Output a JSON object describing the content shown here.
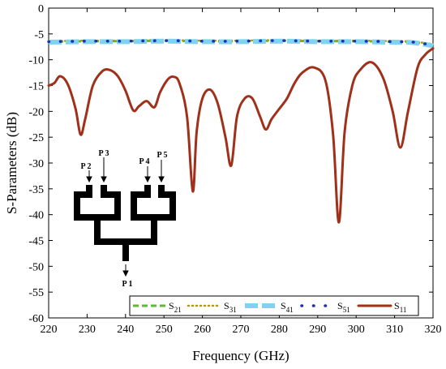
{
  "chart_data": {
    "type": "line",
    "xlabel": "Frequency (GHz)",
    "ylabel": "S-Parameters (dB)",
    "xlim": [
      220,
      320
    ],
    "ylim": [
      -60,
      0
    ],
    "x_ticks": [
      220,
      230,
      240,
      250,
      260,
      270,
      280,
      290,
      300,
      310,
      320
    ],
    "y_ticks": [
      0,
      -5,
      -10,
      -15,
      -20,
      -25,
      -30,
      -35,
      -40,
      -45,
      -50,
      -55,
      -60
    ],
    "grid": false,
    "legend_position": "bottom",
    "legend": [
      {
        "base": "S",
        "sub": "21",
        "color": "#5fb83a",
        "style": "dash"
      },
      {
        "base": "S",
        "sub": "31",
        "color": "#b59a00",
        "style": "dot"
      },
      {
        "base": "S",
        "sub": "41",
        "color": "#7fd3f0",
        "style": "thick-dash"
      },
      {
        "base": "S",
        "sub": "51",
        "color": "#1f2fb0",
        "style": "sparse-dot"
      },
      {
        "base": "S",
        "sub": "11",
        "color": "#a0301a",
        "style": "solid"
      }
    ],
    "series": [
      {
        "name": "S21",
        "color": "#5fb83a",
        "style": "dash",
        "x": [
          220,
          230,
          240,
          250,
          260,
          270,
          280,
          290,
          300,
          310,
          315,
          320
        ],
        "y": [
          -6.5,
          -6.4,
          -6.4,
          -6.3,
          -6.4,
          -6.4,
          -6.3,
          -6.4,
          -6.4,
          -6.5,
          -6.6,
          -7.2
        ]
      },
      {
        "name": "S31",
        "color": "#b59a00",
        "style": "dot",
        "x": [
          220,
          230,
          240,
          250,
          260,
          270,
          280,
          290,
          300,
          310,
          315,
          320
        ],
        "y": [
          -6.4,
          -6.3,
          -6.3,
          -6.2,
          -6.3,
          -6.3,
          -6.2,
          -6.3,
          -6.3,
          -6.4,
          -6.5,
          -7.0
        ]
      },
      {
        "name": "S41",
        "color": "#7fd3f0",
        "style": "thick-dash",
        "x": [
          220,
          230,
          240,
          250,
          260,
          270,
          280,
          290,
          300,
          310,
          315,
          320
        ],
        "y": [
          -6.6,
          -6.5,
          -6.5,
          -6.4,
          -6.5,
          -6.5,
          -6.4,
          -6.5,
          -6.5,
          -6.6,
          -6.7,
          -7.3
        ]
      },
      {
        "name": "S51",
        "color": "#1f2fb0",
        "style": "sparse-dot",
        "x": [
          220,
          230,
          240,
          250,
          260,
          270,
          280,
          290,
          300,
          310,
          315,
          320
        ],
        "y": [
          -6.5,
          -6.4,
          -6.4,
          -6.3,
          -6.4,
          -6.4,
          -6.3,
          -6.4,
          -6.4,
          -6.5,
          -6.6,
          -7.2
        ]
      },
      {
        "name": "S11",
        "color": "#a0301a",
        "style": "solid",
        "x": [
          220,
          221.5,
          223,
          225,
          227,
          228.3,
          229.5,
          231.5,
          234,
          236,
          238,
          240,
          242,
          243.5,
          245.5,
          247.5,
          249,
          251,
          252.5,
          254,
          256,
          257.5,
          258.5,
          260,
          262,
          264,
          266,
          267.5,
          269,
          271,
          273,
          275,
          276.5,
          278,
          280,
          282,
          284,
          286,
          289,
          292,
          294,
          295.5,
          297,
          299,
          301,
          304,
          307,
          309.5,
          311.5,
          313.5,
          316,
          318,
          320
        ],
        "y": [
          -15,
          -14.5,
          -13.2,
          -14.8,
          -19.5,
          -24.5,
          -21.5,
          -15,
          -12.2,
          -12,
          -13.2,
          -16,
          -19.8,
          -19,
          -18,
          -19.2,
          -16.3,
          -13.8,
          -13.3,
          -14.5,
          -21,
          -35.5,
          -24,
          -17.5,
          -15.8,
          -18.5,
          -25,
          -30.5,
          -21,
          -17.5,
          -17.5,
          -21,
          -23.5,
          -21.5,
          -19.5,
          -17.5,
          -14.5,
          -12.5,
          -11.5,
          -14,
          -24.5,
          -41.5,
          -24,
          -15,
          -12,
          -10.5,
          -13.5,
          -20,
          -27,
          -20,
          -11.5,
          -9,
          -7.8
        ]
      }
    ],
    "inset_ports": [
      "P 1",
      "P 2",
      "P 3",
      "P 4",
      "P 5"
    ]
  }
}
